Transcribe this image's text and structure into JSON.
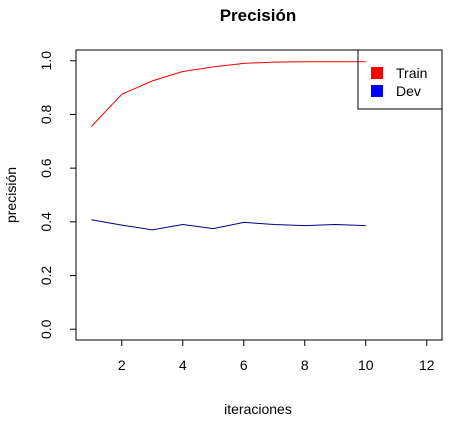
{
  "chart_data": {
    "type": "line",
    "title": "Precisión",
    "xlabel": "iteraciones",
    "ylabel": "precisión",
    "xlim": [
      0.5,
      12.5
    ],
    "ylim": [
      -0.04,
      1.04
    ],
    "xticks": [
      2,
      4,
      6,
      8,
      10,
      12
    ],
    "yticks": [
      0.0,
      0.2,
      0.4,
      0.6,
      0.8,
      1.0
    ],
    "xtick_labels": [
      "2",
      "4",
      "6",
      "8",
      "10",
      "12"
    ],
    "ytick_labels": [
      "0.0",
      "0.2",
      "0.4",
      "0.6",
      "0.8",
      "1.0"
    ],
    "grid": false,
    "legend_position": "top-right",
    "x": [
      1,
      2,
      3,
      4,
      5,
      6,
      7,
      8,
      9,
      10
    ],
    "series": [
      {
        "name": "Train",
        "color": "#ff0000",
        "legend_color": "#ff0000",
        "values": [
          0.755,
          0.875,
          0.925,
          0.96,
          0.977,
          0.99,
          0.995,
          0.996,
          0.996,
          0.996
        ]
      },
      {
        "name": "Dev",
        "color": "#00008b",
        "legend_color": "#0000ff",
        "values": [
          0.408,
          0.388,
          0.37,
          0.39,
          0.375,
          0.398,
          0.39,
          0.386,
          0.39,
          0.386
        ]
      }
    ]
  }
}
